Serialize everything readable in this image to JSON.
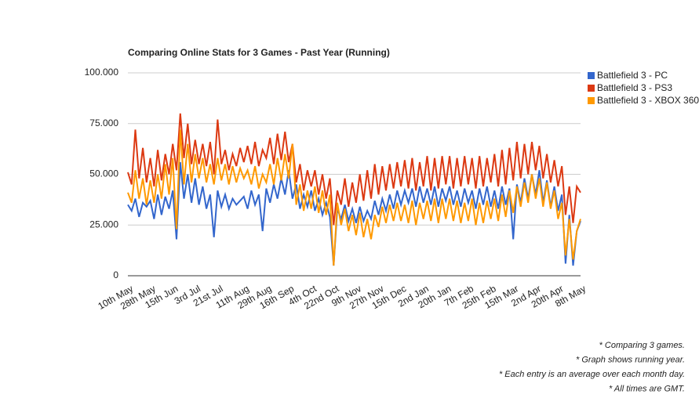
{
  "chart_data": {
    "type": "line",
    "title": "Comparing Online Stats for 3 Games - Past Year (Running)",
    "categories": [
      "10th May",
      null,
      null,
      null,
      null,
      null,
      "28th May",
      null,
      null,
      null,
      null,
      null,
      "15th Jun",
      null,
      null,
      null,
      null,
      null,
      "3rd Jul",
      null,
      null,
      null,
      null,
      null,
      "21st Jul",
      null,
      null,
      null,
      null,
      null,
      null,
      "11th Aug",
      null,
      null,
      null,
      null,
      null,
      "29th Aug",
      null,
      null,
      null,
      null,
      null,
      "16th Sep",
      null,
      null,
      null,
      null,
      null,
      "4th Oct",
      null,
      null,
      null,
      null,
      null,
      "22nd Oct",
      null,
      null,
      null,
      null,
      null,
      "9th Nov",
      null,
      null,
      null,
      null,
      null,
      "27th Nov",
      null,
      null,
      null,
      null,
      null,
      "15th Dec",
      null,
      null,
      null,
      null,
      null,
      "2nd Jan",
      null,
      null,
      null,
      null,
      null,
      "20th Jan",
      null,
      null,
      null,
      null,
      null,
      "7th Feb",
      null,
      null,
      null,
      null,
      null,
      "25th Feb",
      null,
      null,
      null,
      null,
      null,
      "15th Mar",
      null,
      null,
      null,
      null,
      null,
      "2nd Apr",
      null,
      null,
      null,
      null,
      null,
      "20th Apr",
      null,
      null,
      null,
      null,
      null,
      "8th May"
    ],
    "series": [
      {
        "name": "Battlefield 3 - PC",
        "color": "#3366cc",
        "values": [
          35000,
          32000,
          38000,
          29000,
          36000,
          34000,
          37000,
          28000,
          40000,
          30000,
          39000,
          33000,
          42000,
          18000,
          56000,
          38000,
          50000,
          36000,
          48000,
          35000,
          44000,
          33000,
          40000,
          19000,
          42000,
          34000,
          40000,
          33000,
          38000,
          35000,
          37000,
          39000,
          33000,
          42000,
          35000,
          40000,
          22000,
          43000,
          36000,
          45000,
          38000,
          48000,
          40000,
          52000,
          38000,
          45000,
          33000,
          40000,
          34000,
          42000,
          32000,
          38000,
          30000,
          36000,
          29000,
          5000,
          33000,
          28000,
          35000,
          27000,
          33000,
          26000,
          34000,
          27000,
          32000,
          28000,
          37000,
          30000,
          38000,
          32000,
          40000,
          33000,
          42000,
          35000,
          42000,
          36000,
          43000,
          34000,
          44000,
          36000,
          43000,
          35000,
          44000,
          34000,
          43000,
          37000,
          44000,
          35000,
          42000,
          34000,
          43000,
          36000,
          42000,
          33000,
          43000,
          35000,
          44000,
          34000,
          42000,
          33000,
          44000,
          35000,
          43000,
          18000,
          45000,
          36000,
          48000,
          38000,
          50000,
          40000,
          52000,
          36000,
          47000,
          34000,
          44000,
          32000,
          40000,
          6000,
          30000,
          5000,
          22000,
          27000
        ]
      },
      {
        "name": "Battlefield 3 - PS3",
        "color": "#dc3912",
        "values": [
          51000,
          45000,
          72000,
          48000,
          63000,
          46000,
          58000,
          44000,
          62000,
          47000,
          60000,
          50000,
          65000,
          52000,
          80000,
          58000,
          75000,
          55000,
          67000,
          55000,
          65000,
          54000,
          66000,
          50000,
          77000,
          55000,
          62000,
          52000,
          60000,
          54000,
          63000,
          56000,
          64000,
          55000,
          66000,
          54000,
          62000,
          58000,
          68000,
          55000,
          70000,
          57000,
          71000,
          56000,
          65000,
          46000,
          55000,
          42000,
          52000,
          44000,
          52000,
          40000,
          50000,
          38000,
          48000,
          25000,
          42000,
          35000,
          48000,
          34000,
          46000,
          36000,
          50000,
          37000,
          52000,
          38000,
          55000,
          40000,
          54000,
          42000,
          55000,
          43000,
          56000,
          44000,
          57000,
          43000,
          58000,
          42000,
          56000,
          44000,
          59000,
          42000,
          58000,
          43000,
          59000,
          45000,
          59000,
          43000,
          58000,
          44000,
          59000,
          45000,
          58000,
          43000,
          59000,
          44000,
          58000,
          46000,
          60000,
          44000,
          62000,
          45000,
          63000,
          47000,
          66000,
          48000,
          65000,
          50000,
          66000,
          52000,
          64000,
          48000,
          60000,
          46000,
          57000,
          44000,
          54000,
          30000,
          44000,
          26000,
          44000,
          41000
        ]
      },
      {
        "name": "Battlefield 3 - XBOX 360",
        "color": "#ff9900",
        "values": [
          41000,
          36000,
          52000,
          38000,
          48000,
          35000,
          47000,
          36000,
          50000,
          38000,
          55000,
          40000,
          58000,
          23000,
          72000,
          45000,
          65000,
          46000,
          60000,
          48000,
          58000,
          46000,
          55000,
          45000,
          58000,
          47000,
          55000,
          45000,
          54000,
          46000,
          53000,
          48000,
          52000,
          45000,
          54000,
          43000,
          50000,
          46000,
          55000,
          45000,
          58000,
          47000,
          60000,
          48000,
          65000,
          35000,
          45000,
          32000,
          42000,
          33000,
          44000,
          31000,
          42000,
          30000,
          40000,
          5000,
          36000,
          25000,
          33000,
          22000,
          30000,
          20000,
          31000,
          19000,
          28000,
          18000,
          30000,
          24000,
          34000,
          26000,
          35000,
          27000,
          36000,
          27000,
          35000,
          26000,
          37000,
          25000,
          36000,
          28000,
          37000,
          27000,
          38000,
          26000,
          38000,
          28000,
          38000,
          27000,
          37000,
          26000,
          36000,
          27000,
          38000,
          25000,
          36000,
          26000,
          37000,
          28000,
          38000,
          27000,
          40000,
          29000,
          42000,
          31000,
          44000,
          34000,
          46000,
          36000,
          50000,
          38000,
          48000,
          34000,
          46000,
          33000,
          42000,
          28000,
          36000,
          10000,
          28000,
          8000,
          22000,
          28000
        ]
      }
    ],
    "ylim": [
      0,
      100000
    ],
    "yticks": [
      0,
      {
        "value": 25000,
        "label": "25.000"
      },
      {
        "value": 50000,
        "label": "50.000"
      },
      {
        "value": 75000,
        "label": "75.000"
      },
      {
        "value": 100000,
        "label": "100.000"
      }
    ],
    "grid": true,
    "legend": "right",
    "footnotes": [
      "* Comparing 3 games.",
      "* Graph shows running year.",
      "* Each entry is an average over each month day.",
      "* All times are GMT."
    ]
  }
}
